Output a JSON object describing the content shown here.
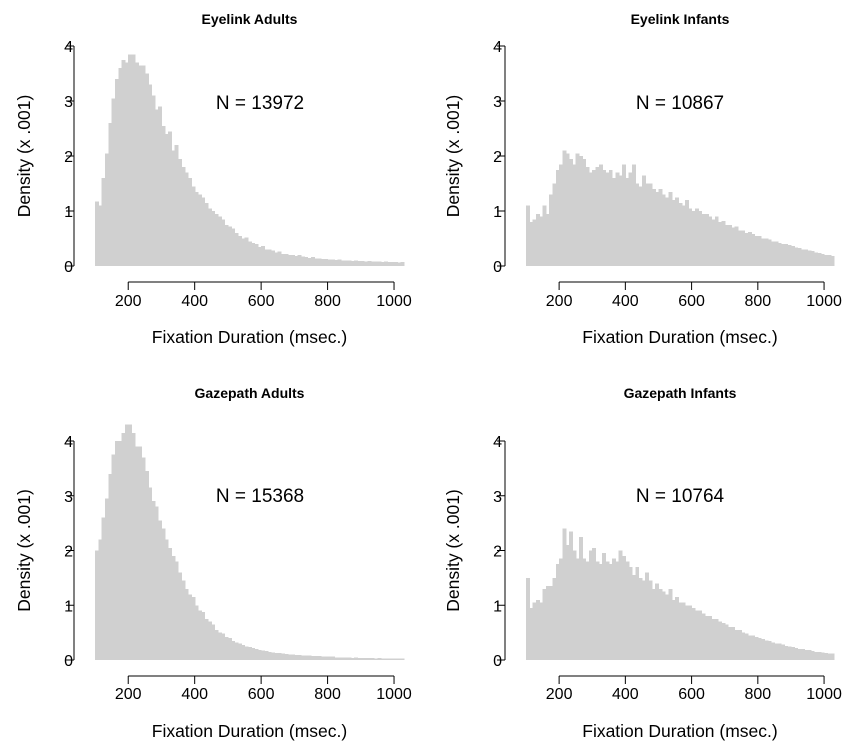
{
  "colors": {
    "bar": "#d0d0d0",
    "axis": "#000000",
    "background": "#ffffff"
  },
  "chart_data": [
    {
      "type": "bar",
      "title": "Eyelink Adults",
      "annotation": "N = 13972",
      "xlabel": "Fixation Duration (msec.)",
      "ylabel": "Density (x .001)",
      "xlim": [
        100,
        1030
      ],
      "ylim": [
        0,
        4
      ],
      "xticks": [
        200,
        400,
        600,
        800,
        1000
      ],
      "yticks": [
        0,
        1,
        2,
        3,
        4
      ],
      "bin_start": 100,
      "bin_width": 10,
      "values": [
        1.17,
        1.1,
        1.6,
        2.05,
        2.6,
        3.05,
        3.4,
        3.6,
        3.75,
        3.7,
        3.85,
        3.85,
        3.7,
        3.65,
        3.65,
        3.5,
        3.3,
        3.1,
        2.85,
        2.9,
        2.55,
        2.4,
        2.45,
        2.1,
        2.2,
        1.95,
        1.8,
        1.7,
        1.6,
        1.45,
        1.35,
        1.3,
        1.25,
        1.15,
        1.05,
        1.0,
        0.95,
        0.9,
        0.85,
        0.75,
        0.72,
        0.68,
        0.6,
        0.55,
        0.5,
        0.52,
        0.45,
        0.42,
        0.4,
        0.35,
        0.36,
        0.3,
        0.3,
        0.28,
        0.25,
        0.26,
        0.22,
        0.22,
        0.2,
        0.2,
        0.18,
        0.2,
        0.17,
        0.16,
        0.15,
        0.16,
        0.14,
        0.14,
        0.13,
        0.13,
        0.12,
        0.12,
        0.11,
        0.12,
        0.1,
        0.1,
        0.1,
        0.09,
        0.1,
        0.09,
        0.09,
        0.08,
        0.09,
        0.08,
        0.08,
        0.08,
        0.07,
        0.08,
        0.07,
        0.07,
        0.07,
        0.06,
        0.07
      ]
    },
    {
      "type": "bar",
      "title": "Eyelink Infants",
      "annotation": "N = 10867",
      "xlabel": "Fixation Duration (msec.)",
      "ylabel": "Density (x .001)",
      "xlim": [
        100,
        1030
      ],
      "ylim": [
        0,
        4
      ],
      "xticks": [
        200,
        400,
        600,
        800,
        1000
      ],
      "yticks": [
        0,
        1,
        2,
        3,
        4
      ],
      "bin_start": 100,
      "bin_width": 10,
      "values": [
        1.1,
        0.8,
        0.85,
        0.95,
        0.9,
        1.1,
        0.95,
        1.3,
        1.5,
        1.75,
        1.85,
        2.1,
        2.05,
        1.95,
        1.85,
        2.05,
        2.0,
        1.95,
        1.8,
        1.7,
        1.75,
        1.8,
        1.85,
        1.75,
        1.7,
        1.75,
        1.6,
        1.7,
        1.65,
        1.85,
        1.6,
        1.7,
        1.85,
        1.5,
        1.45,
        1.65,
        1.5,
        1.5,
        1.4,
        1.35,
        1.4,
        1.3,
        1.25,
        1.35,
        1.2,
        1.25,
        1.15,
        1.1,
        1.2,
        1.05,
        1.0,
        1.05,
        1.0,
        0.95,
        0.95,
        0.9,
        0.85,
        0.9,
        0.8,
        0.82,
        0.75,
        0.75,
        0.7,
        0.72,
        0.65,
        0.65,
        0.6,
        0.62,
        0.58,
        0.55,
        0.55,
        0.5,
        0.5,
        0.48,
        0.45,
        0.45,
        0.42,
        0.4,
        0.4,
        0.38,
        0.36,
        0.34,
        0.33,
        0.3,
        0.3,
        0.28,
        0.27,
        0.25,
        0.24,
        0.22,
        0.2,
        0.2,
        0.18
      ]
    },
    {
      "type": "bar",
      "title": "Gazepath Adults",
      "annotation": "N = 15368",
      "xlabel": "Fixation Duration (msec.)",
      "ylabel": "Density (x .001)",
      "xlim": [
        100,
        1030
      ],
      "ylim": [
        0,
        4
      ],
      "xticks": [
        200,
        400,
        600,
        800,
        1000
      ],
      "yticks": [
        0,
        1,
        2,
        3,
        4
      ],
      "bin_start": 100,
      "bin_width": 10,
      "values": [
        2.0,
        2.2,
        2.6,
        2.95,
        3.4,
        3.75,
        4.0,
        4.0,
        4.15,
        4.3,
        4.3,
        4.15,
        3.9,
        3.9,
        3.7,
        3.45,
        3.15,
        2.9,
        2.8,
        2.55,
        2.4,
        2.2,
        2.05,
        1.9,
        1.8,
        1.6,
        1.45,
        1.3,
        1.2,
        1.15,
        1.0,
        0.9,
        0.88,
        0.75,
        0.7,
        0.65,
        0.55,
        0.5,
        0.48,
        0.42,
        0.4,
        0.35,
        0.32,
        0.3,
        0.27,
        0.25,
        0.24,
        0.22,
        0.2,
        0.18,
        0.17,
        0.16,
        0.15,
        0.14,
        0.13,
        0.13,
        0.12,
        0.11,
        0.1,
        0.1,
        0.09,
        0.09,
        0.08,
        0.08,
        0.08,
        0.07,
        0.07,
        0.07,
        0.06,
        0.06,
        0.06,
        0.06,
        0.05,
        0.05,
        0.05,
        0.05,
        0.05,
        0.04,
        0.05,
        0.04,
        0.04,
        0.04,
        0.04,
        0.04,
        0.03,
        0.04,
        0.03,
        0.03,
        0.03,
        0.03,
        0.03,
        0.03,
        0.03
      ]
    },
    {
      "type": "bar",
      "title": "Gazepath Infants",
      "annotation": "N = 10764",
      "xlabel": "Fixation Duration (msec.)",
      "ylabel": "Density (x .001)",
      "xlim": [
        100,
        1030
      ],
      "ylim": [
        0,
        4
      ],
      "xticks": [
        200,
        400,
        600,
        800,
        1000
      ],
      "yticks": [
        0,
        1,
        2,
        3,
        4
      ],
      "bin_start": 100,
      "bin_width": 10,
      "values": [
        1.5,
        0.95,
        1.05,
        1.1,
        1.05,
        1.3,
        1.35,
        1.35,
        1.5,
        1.75,
        1.85,
        2.4,
        2.1,
        2.35,
        2.0,
        1.85,
        2.25,
        1.85,
        1.8,
        2.0,
        2.05,
        1.8,
        1.75,
        1.95,
        1.8,
        1.75,
        1.85,
        1.8,
        2.0,
        1.9,
        1.8,
        1.7,
        1.55,
        1.7,
        1.5,
        1.45,
        1.6,
        1.45,
        1.3,
        1.4,
        1.3,
        1.25,
        1.2,
        1.3,
        1.1,
        1.15,
        1.05,
        1.05,
        1.0,
        1.0,
        0.95,
        0.9,
        0.9,
        0.85,
        0.8,
        0.8,
        0.75,
        0.75,
        0.7,
        0.68,
        0.65,
        0.6,
        0.6,
        0.55,
        0.55,
        0.5,
        0.48,
        0.45,
        0.45,
        0.42,
        0.4,
        0.38,
        0.36,
        0.35,
        0.32,
        0.3,
        0.3,
        0.28,
        0.26,
        0.25,
        0.24,
        0.22,
        0.2,
        0.2,
        0.18,
        0.18,
        0.16,
        0.15,
        0.15,
        0.14,
        0.13,
        0.12,
        0.12
      ]
    }
  ]
}
